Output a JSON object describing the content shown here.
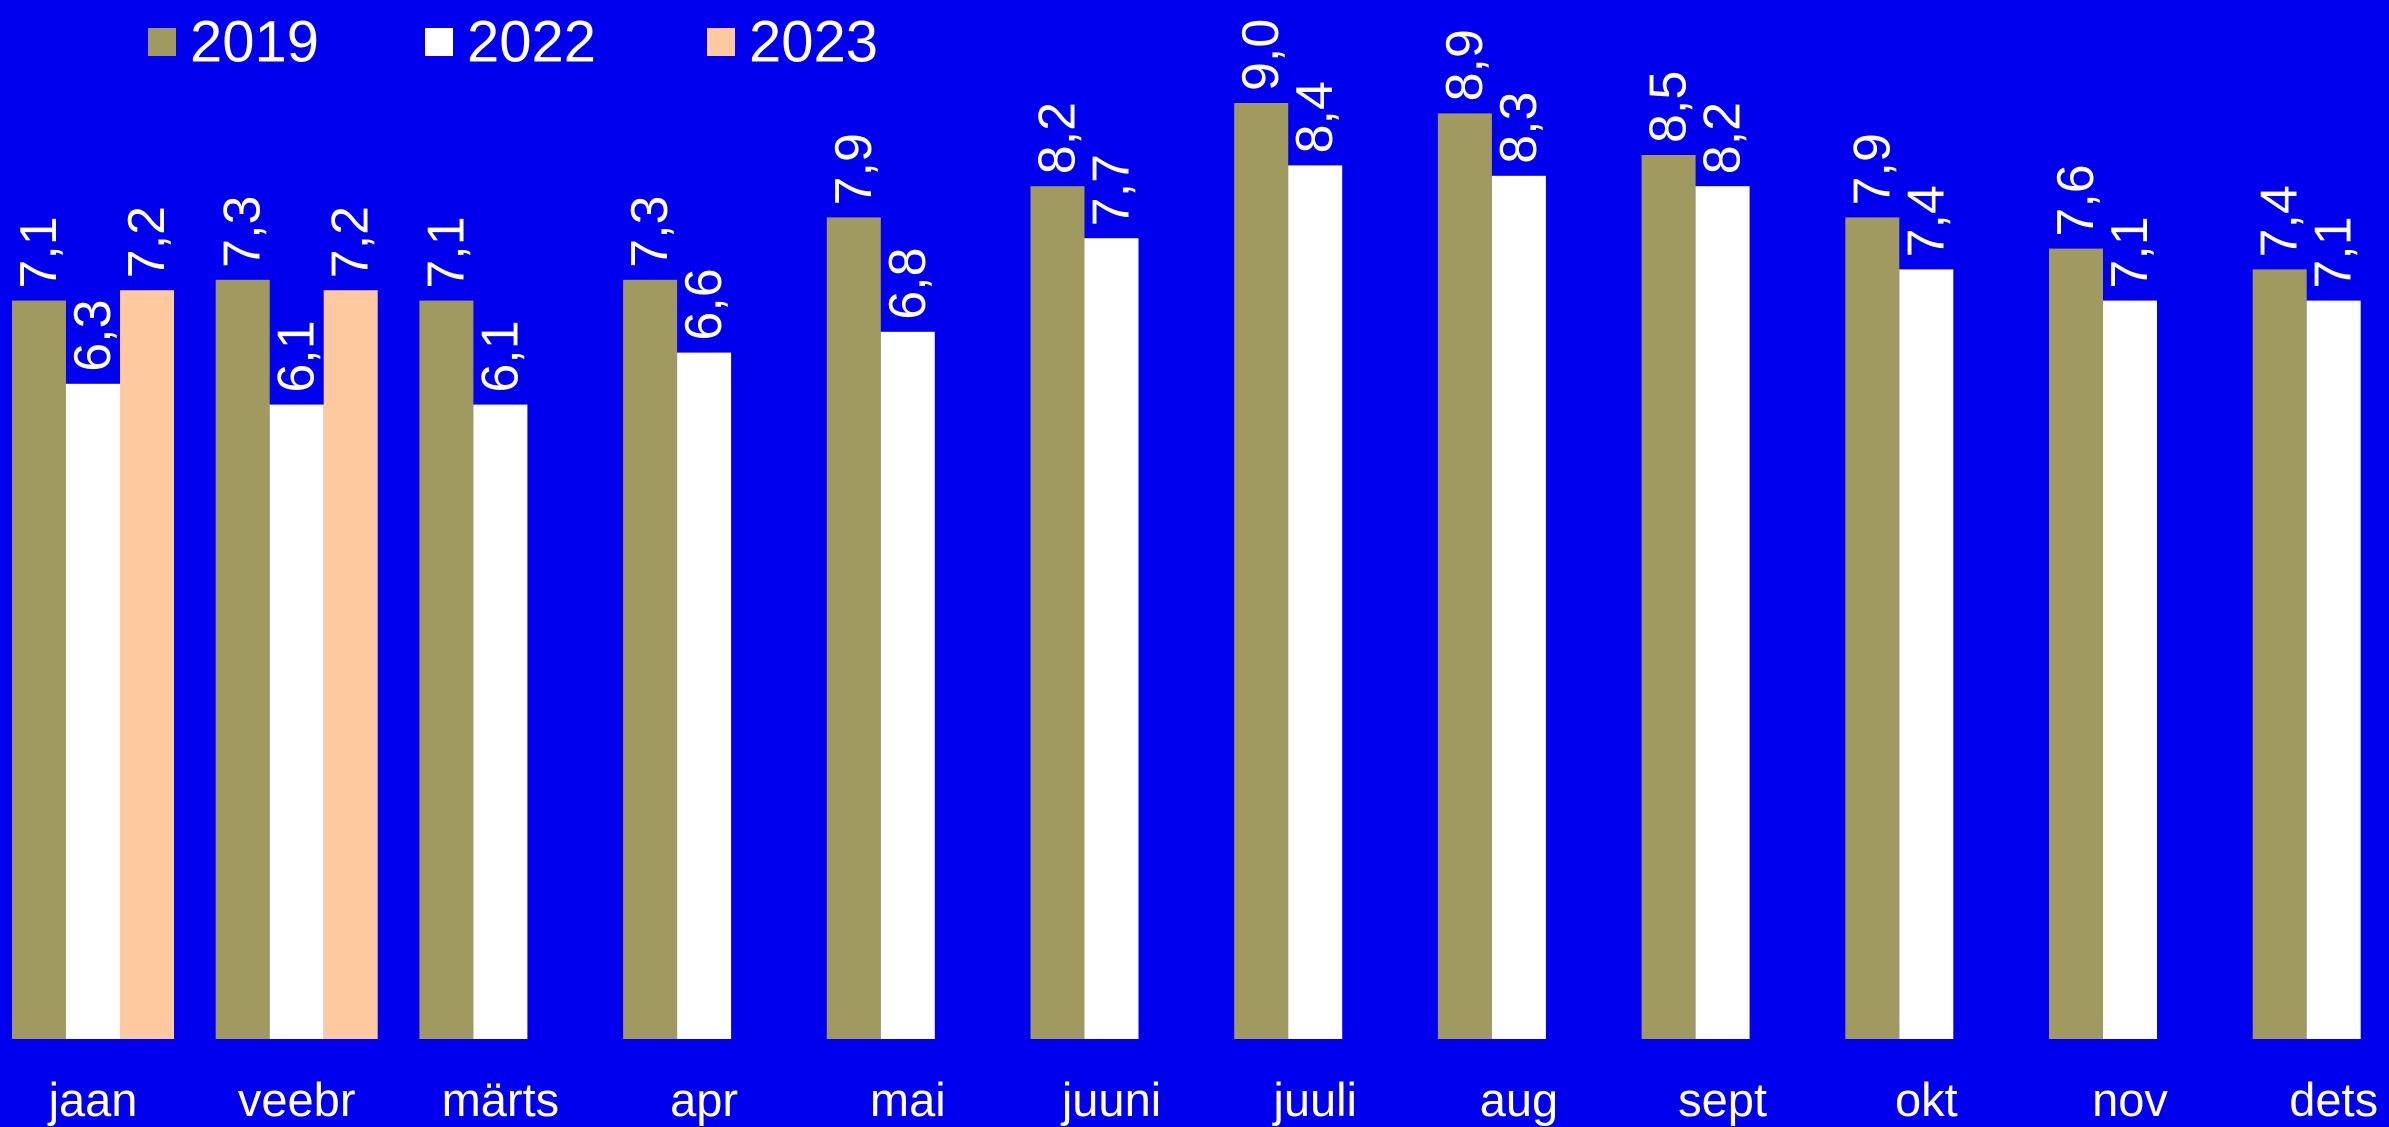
{
  "chart_data": {
    "type": "bar",
    "title": "",
    "xlabel": "",
    "ylabel": "",
    "ylim": [
      0,
      10
    ],
    "grid": false,
    "legend_position": "top-left",
    "background_color": "#0000ee",
    "categories": [
      "jaan",
      "veebr",
      "märts",
      "apr",
      "mai",
      "juuni",
      "juuli",
      "aug",
      "sept",
      "okt",
      "nov",
      "dets"
    ],
    "series": [
      {
        "name": "2019",
        "color": "#a09a60",
        "values": [
          7.1,
          7.3,
          7.1,
          7.3,
          7.9,
          8.2,
          9.0,
          8.9,
          8.5,
          7.9,
          7.6,
          7.4
        ],
        "labels": [
          "7,1",
          "7,3",
          "7,1",
          "7,3",
          "7,9",
          "8,2",
          "9,0",
          "8,9",
          "8,5",
          "7,9",
          "7,6",
          "7,4"
        ]
      },
      {
        "name": "2022",
        "color": "#ffffff",
        "values": [
          6.3,
          6.1,
          6.1,
          6.6,
          6.8,
          7.7,
          8.4,
          8.3,
          8.2,
          7.4,
          7.1,
          7.1
        ],
        "labels": [
          "6,3",
          "6,1",
          "6,1",
          "6,6",
          "6,8",
          "7,7",
          "8,4",
          "8,3",
          "8,2",
          "7,4",
          "7,1",
          "7,1"
        ]
      },
      {
        "name": "2023",
        "color": "#ffc9a0",
        "values": [
          7.2,
          7.2,
          null,
          null,
          null,
          null,
          null,
          null,
          null,
          null,
          null,
          null
        ],
        "labels": [
          "7,2",
          "7,2",
          "",
          "",
          "",
          "",
          "",
          "",
          "",
          "",
          "",
          ""
        ]
      }
    ]
  }
}
